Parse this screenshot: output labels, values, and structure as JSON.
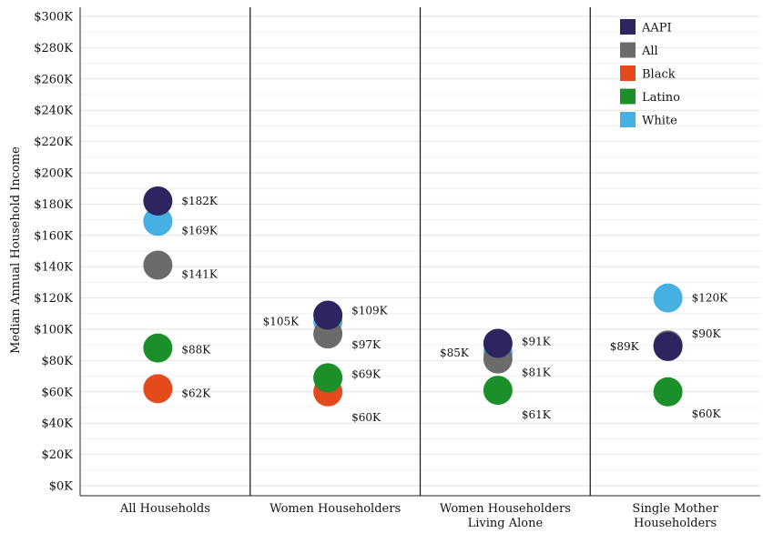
{
  "chart_data": {
    "type": "scatter",
    "ylabel": "Median Annual Household Income",
    "ylim": [
      0,
      300000
    ],
    "yticks": [
      {
        "v": 0,
        "label": "$0K"
      },
      {
        "v": 20000,
        "label": "$20K"
      },
      {
        "v": 40000,
        "label": "$40K"
      },
      {
        "v": 60000,
        "label": "$60K"
      },
      {
        "v": 80000,
        "label": "$80K"
      },
      {
        "v": 100000,
        "label": "$100K"
      },
      {
        "v": 120000,
        "label": "$120K"
      },
      {
        "v": 140000,
        "label": "$140K"
      },
      {
        "v": 160000,
        "label": "$160K"
      },
      {
        "v": 180000,
        "label": "$180K"
      },
      {
        "v": 200000,
        "label": "$200K"
      },
      {
        "v": 220000,
        "label": "$220K"
      },
      {
        "v": 240000,
        "label": "$240K"
      },
      {
        "v": 260000,
        "label": "$260K"
      },
      {
        "v": 280000,
        "label": "$280K"
      },
      {
        "v": 300000,
        "label": "$300K"
      }
    ],
    "grid": true,
    "legend_position": "top-right",
    "categories": [
      [
        "All Households"
      ],
      [
        "Women Householders"
      ],
      [
        "Women Householders",
        "Living Alone"
      ],
      [
        "Single Mother",
        "Householders"
      ]
    ],
    "series": [
      {
        "name": "AAPI",
        "color": "#2d2460",
        "values": [
          182000,
          109000,
          91000,
          89000
        ],
        "labels": [
          "$182K",
          "$109K",
          "$91K",
          "$89K"
        ]
      },
      {
        "name": "All",
        "color": "#6b6b6b",
        "values": [
          141000,
          97000,
          81000,
          90000
        ],
        "labels": [
          "$141K",
          "$97K",
          "$81K",
          "$90K"
        ]
      },
      {
        "name": "Black",
        "color": "#e34a1c",
        "values": [
          62000,
          60000,
          null,
          null
        ],
        "labels": [
          "$62K",
          "$60K",
          "",
          ""
        ]
      },
      {
        "name": "Latino",
        "color": "#1a8f2a",
        "values": [
          88000,
          69000,
          61000,
          60000
        ],
        "labels": [
          "$88K",
          "$69K",
          "$61K",
          "$60K"
        ]
      },
      {
        "name": "White",
        "color": "#47b0e3",
        "values": [
          169000,
          105000,
          85000,
          120000
        ],
        "labels": [
          "$169K",
          "$105K",
          "$85K",
          "$120K"
        ]
      }
    ]
  }
}
